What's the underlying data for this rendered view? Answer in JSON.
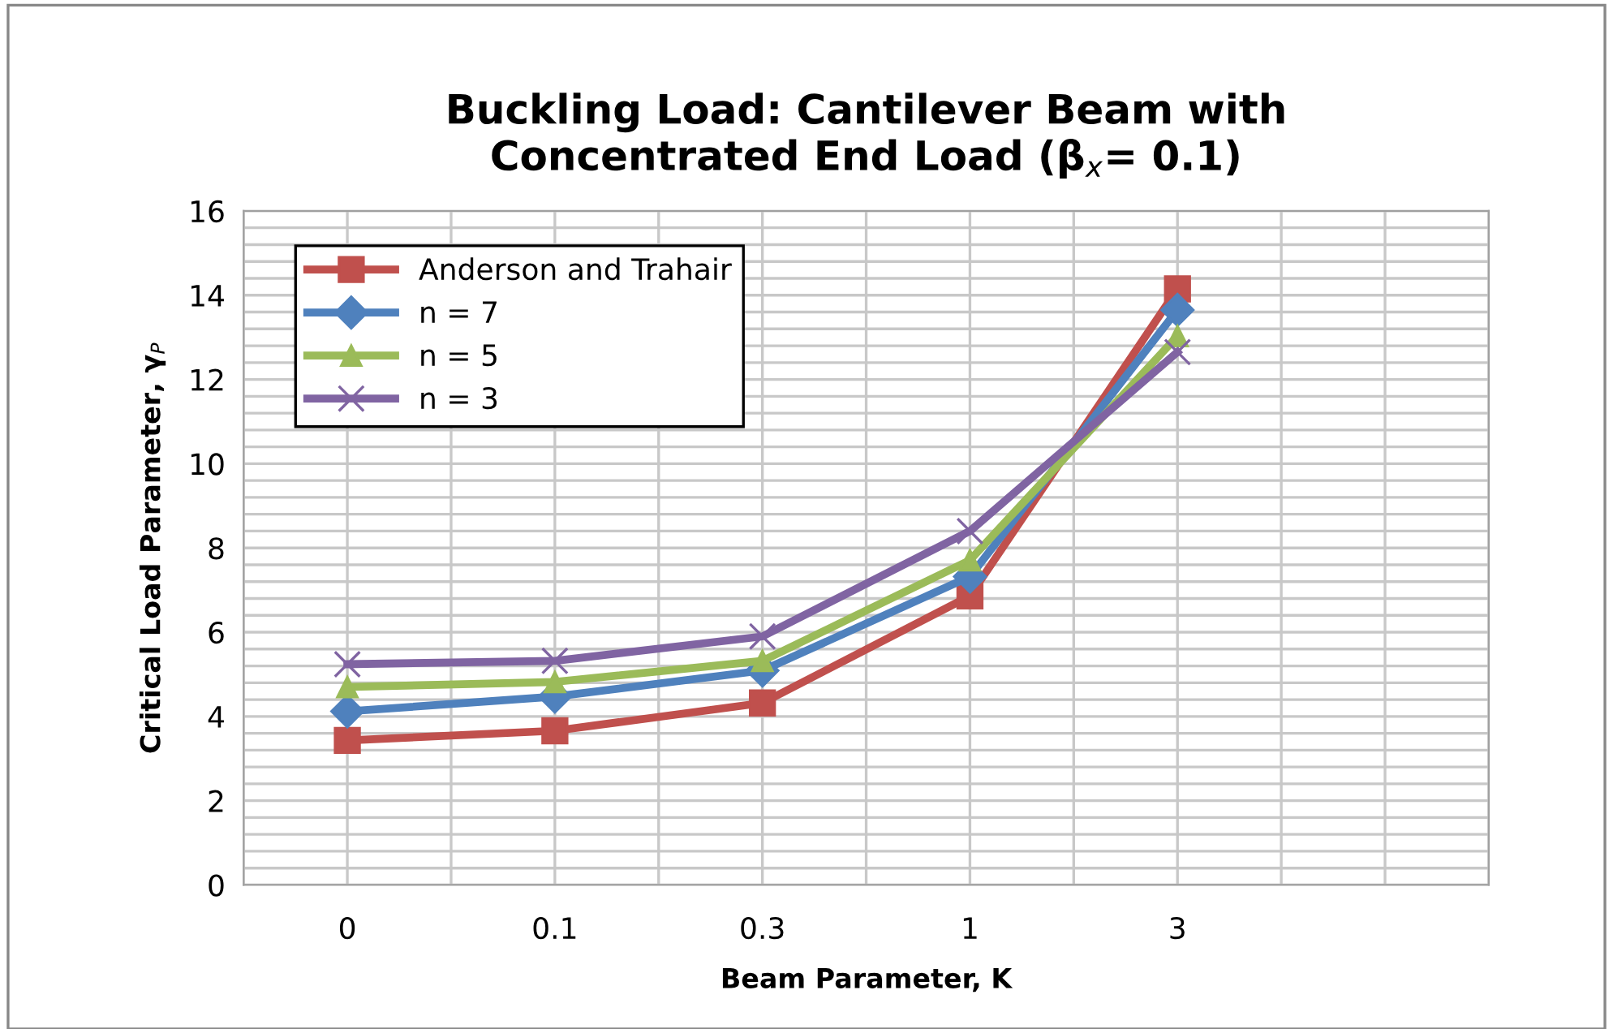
{
  "chart_data": {
    "type": "line",
    "title": "Buckling Load: Cantilever Beam with\nConcentrated End Load (β$_{x}$= 0.1)",
    "xlabel": "Beam Parameter, K",
    "ylabel": "Critical Load Parameter, γ$_{P}$",
    "categories": [
      "0",
      "0.1",
      "0.3",
      "1",
      "3",
      null
    ],
    "series": [
      {
        "name": "Anderson and Trahair",
        "color": "#c0504d",
        "marker": "square",
        "values": [
          3.43,
          3.66,
          4.32,
          6.86,
          14.15,
          null
        ]
      },
      {
        "name": "n = 7",
        "color": "#4f81bd",
        "marker": "diamond",
        "values": [
          4.12,
          4.47,
          5.09,
          7.32,
          13.65,
          null
        ]
      },
      {
        "name": "n = 5",
        "color": "#9bbb59",
        "marker": "triangle",
        "values": [
          4.7,
          4.82,
          5.32,
          7.71,
          13.03,
          null
        ]
      },
      {
        "name": "n = 3",
        "color": "#8064a2",
        "marker": "cross",
        "values": [
          5.24,
          5.32,
          5.9,
          8.4,
          12.65,
          null
        ]
      }
    ],
    "ylim": [
      0,
      16
    ],
    "yticks": [
      0,
      2,
      4,
      6,
      8,
      10,
      12,
      14,
      16
    ],
    "grid": true,
    "legend": "top left"
  }
}
